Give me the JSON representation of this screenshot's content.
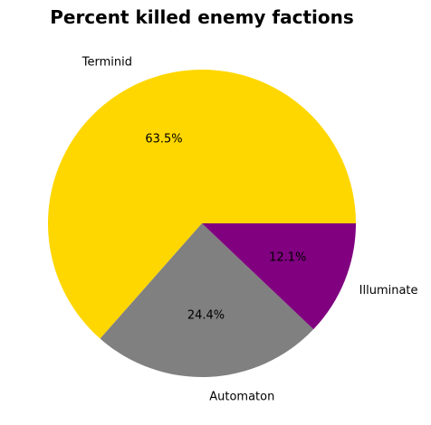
{
  "chart_data": {
    "type": "pie",
    "title": "Percent killed enemy factions",
    "categories": [
      "Terminid",
      "Automaton",
      "Illuminate"
    ],
    "values": [
      63.5,
      24.4,
      12.1
    ],
    "percent_labels": [
      "63.5%",
      "24.4%",
      "12.1%"
    ],
    "colors": [
      "#ffd700",
      "#808080",
      "#800080"
    ],
    "start_angle": 0,
    "direction": "counterclockwise",
    "legend": "none"
  }
}
